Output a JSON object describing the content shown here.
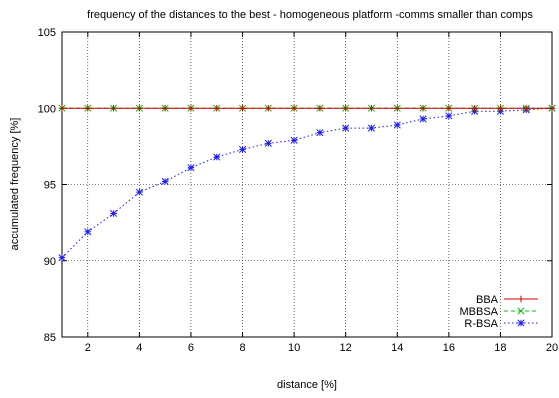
{
  "chart_data": {
    "type": "line",
    "title": "frequency of the distances to the best - homogeneous platform -comms smaller than comps",
    "xlabel": "distance [%]",
    "ylabel": "accumulated frequency [%]",
    "xlim": [
      1,
      20
    ],
    "ylim": [
      85,
      105
    ],
    "xticks": [
      2,
      4,
      6,
      8,
      10,
      12,
      14,
      16,
      18,
      20
    ],
    "yticks": [
      85,
      90,
      95,
      100,
      105
    ],
    "grid": true,
    "legend_position": "bottom-right",
    "x": [
      1,
      2,
      3,
      4,
      5,
      6,
      7,
      8,
      9,
      10,
      11,
      12,
      13,
      14,
      15,
      16,
      17,
      18,
      19,
      20
    ],
    "series": [
      {
        "name": "BBA",
        "color": "#cc0000",
        "marker": "plus",
        "dash": "solid",
        "values": [
          100,
          100,
          100,
          100,
          100,
          100,
          100,
          100,
          100,
          100,
          100,
          100,
          100,
          100,
          100,
          100,
          100,
          100,
          100,
          100
        ]
      },
      {
        "name": "MBBSA",
        "color": "#00bb00",
        "marker": "cross",
        "dash": "dashed",
        "values": [
          100,
          100,
          100,
          100,
          100,
          100,
          100,
          100,
          100,
          100,
          100,
          100,
          100,
          100,
          100,
          100,
          100,
          100,
          100,
          100
        ]
      },
      {
        "name": "R-BSA",
        "color": "#1a1aee",
        "marker": "star",
        "dash": "dotted",
        "values": [
          90.2,
          91.9,
          93.1,
          94.5,
          95.2,
          96.1,
          96.8,
          97.3,
          97.7,
          97.9,
          98.4,
          98.7,
          98.7,
          98.9,
          99.3,
          99.5,
          99.8,
          99.8,
          99.9,
          100
        ]
      }
    ]
  }
}
